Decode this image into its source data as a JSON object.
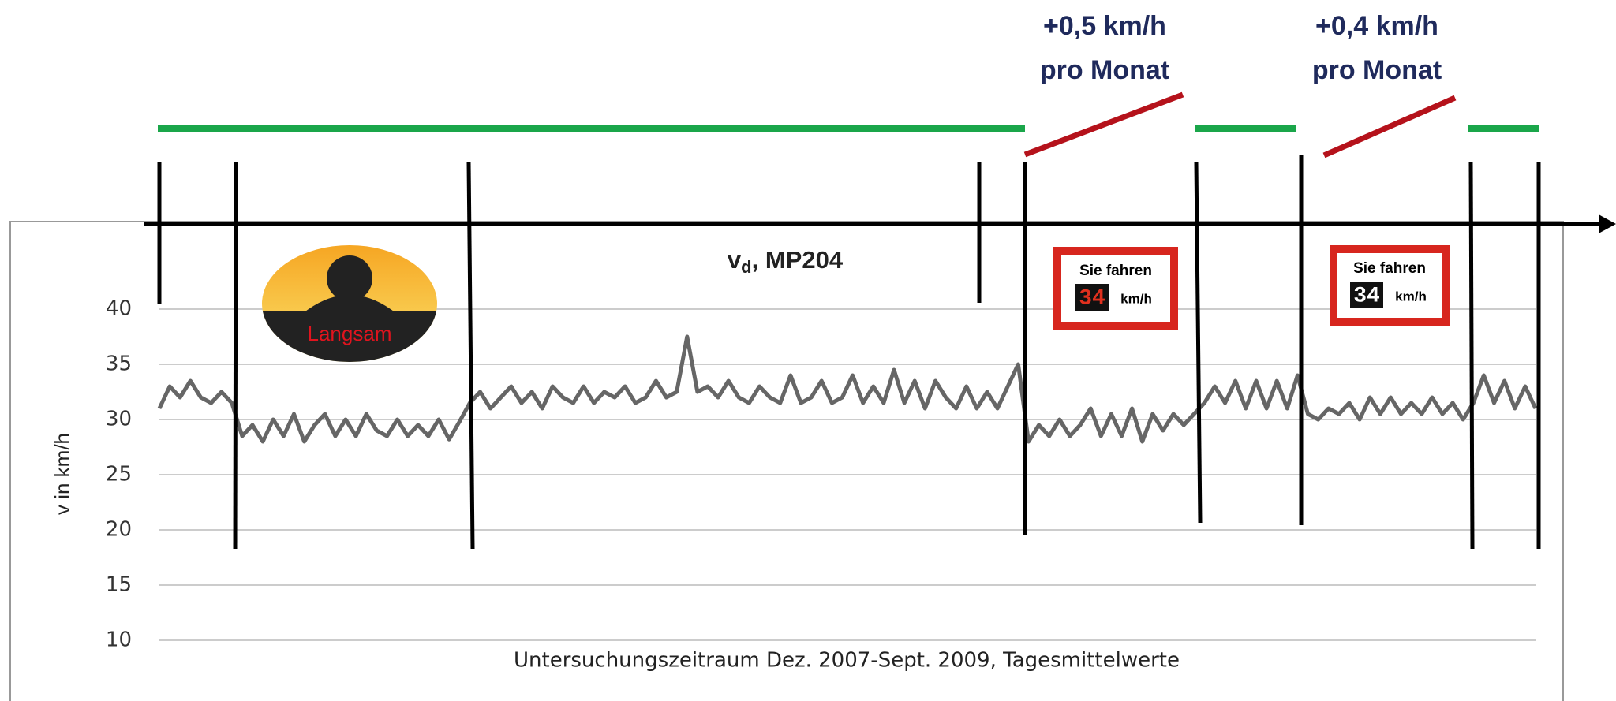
{
  "chart_data": {
    "type": "line",
    "title": [
      "v",
      "d",
      ", MP204"
    ],
    "ylabel": "v in km/h",
    "xlabel": "Untersuchungszeitraum Dez. 2007-Sept. 2009, Tagesmittelwerte",
    "color": "#666666",
    "ylim": [
      10,
      40
    ],
    "yticks": [
      10,
      15,
      20,
      25,
      30,
      35,
      40
    ],
    "grid": true,
    "values": [
      31,
      33,
      32,
      33.5,
      32,
      31.5,
      32.5,
      31.5,
      28.5,
      29.5,
      28,
      30,
      28.5,
      30.5,
      28,
      29.5,
      30.5,
      28.5,
      30,
      28.5,
      30.5,
      29,
      28.5,
      30,
      28.5,
      29.5,
      28.5,
      30,
      28.2,
      29.8,
      31.5,
      32.5,
      31,
      32,
      33,
      31.5,
      32.5,
      31,
      33,
      32,
      31.5,
      33,
      31.5,
      32.5,
      32,
      33,
      31.5,
      32,
      33.5,
      32,
      32.5,
      37.5,
      32.5,
      33,
      32,
      33.5,
      32,
      31.5,
      33,
      32,
      31.5,
      34,
      31.5,
      32,
      33.5,
      31.5,
      32,
      34,
      31.5,
      33,
      31.5,
      34.5,
      31.5,
      33.5,
      31,
      33.5,
      32,
      31,
      33,
      31,
      32.5,
      31,
      33,
      35,
      28,
      29.5,
      28.5,
      30,
      28.5,
      29.5,
      31,
      28.5,
      30.5,
      28.5,
      31,
      28,
      30.5,
      29,
      30.5,
      29.5,
      30.5,
      31.5,
      33,
      31.5,
      33.5,
      31,
      33.5,
      31,
      33.5,
      31,
      34,
      30.5,
      30,
      31,
      30.5,
      31.5,
      30,
      32,
      30.5,
      32,
      30.5,
      31.5,
      30.5,
      32,
      30.5,
      31.5,
      30,
      31.5,
      34,
      31.5,
      33.5,
      31,
      33,
      31
    ],
    "annotations": [
      "+0,5 km/h",
      "pro Monat",
      "+0,4 km/h",
      "pro Monat"
    ],
    "icon_text": "Langsam",
    "signs": [
      {
        "top": "Sie fahren",
        "speed": "34",
        "unit": "km/h"
      },
      {
        "top": "Sie fahren",
        "speed": "34",
        "unit": "km/h"
      }
    ]
  }
}
